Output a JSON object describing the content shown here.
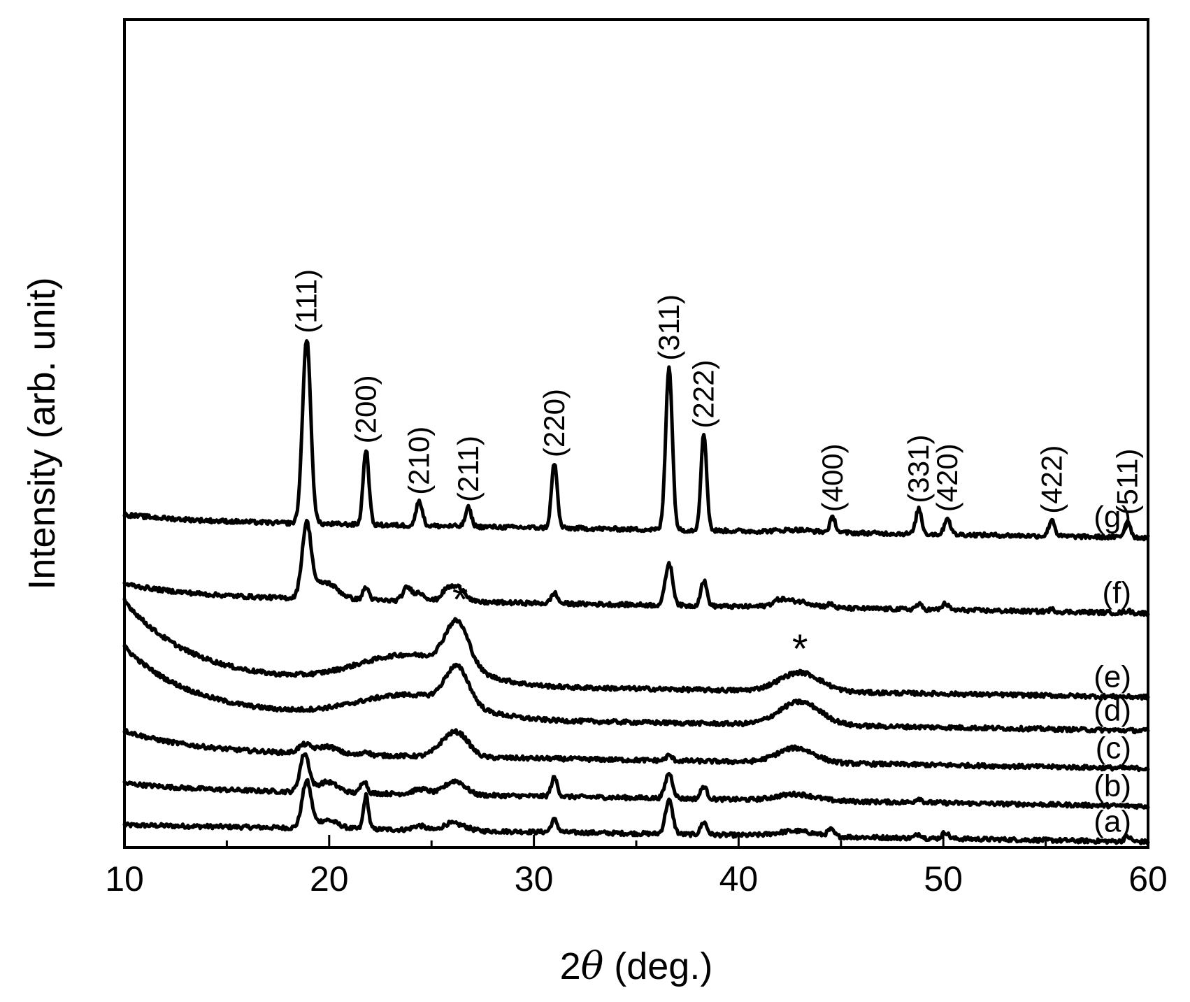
{
  "chart_data": {
    "type": "line",
    "title": "",
    "xlabel": "2θ (deg.)",
    "xlabel_parts": {
      "prefix": "2",
      "symbol": "θ",
      "suffix": " (deg.)"
    },
    "ylabel": "Intensity (arb. unit)",
    "xlim": [
      10,
      60
    ],
    "xticks": [
      10,
      20,
      30,
      40,
      50,
      60
    ],
    "yticks_shown": false,
    "grid": false,
    "legend": "none",
    "series": [
      {
        "name": "(a)",
        "offset": 0.25,
        "peaks": [
          [
            18.9,
            1.1,
            0.22
          ],
          [
            19.9,
            0.2,
            0.5
          ],
          [
            21.8,
            0.8,
            0.12
          ],
          [
            24.4,
            0.1,
            0.3
          ],
          [
            25.8,
            0.12,
            0.3
          ],
          [
            26.4,
            0.12,
            0.4
          ],
          [
            31.0,
            0.3,
            0.15
          ],
          [
            36.6,
            0.8,
            0.18
          ],
          [
            38.3,
            0.3,
            0.15
          ],
          [
            42.8,
            0.12,
            0.9
          ],
          [
            44.5,
            0.15,
            0.15
          ],
          [
            48.8,
            0.1,
            0.15
          ],
          [
            50.1,
            0.15,
            0.15
          ],
          [
            59.0,
            0.12,
            0.15
          ]
        ]
      },
      {
        "name": "(b)",
        "offset": 1.1,
        "peaks": [
          [
            18.8,
            0.9,
            0.22
          ],
          [
            19.9,
            0.25,
            0.5
          ],
          [
            21.7,
            0.3,
            0.15
          ],
          [
            24.5,
            0.12,
            0.4
          ],
          [
            25.9,
            0.2,
            0.4
          ],
          [
            26.4,
            0.2,
            0.4
          ],
          [
            31.0,
            0.45,
            0.15
          ],
          [
            36.6,
            0.6,
            0.18
          ],
          [
            38.3,
            0.3,
            0.15
          ],
          [
            42.8,
            0.15,
            0.9
          ],
          [
            48.8,
            0.1,
            0.15
          ]
        ]
      },
      {
        "name": "(c)",
        "offset": 2.0,
        "peaks": [
          [
            18.8,
            0.2,
            0.3
          ],
          [
            19.9,
            0.18,
            0.5
          ],
          [
            21.8,
            0.1,
            0.15
          ],
          [
            25.7,
            0.3,
            0.5
          ],
          [
            26.4,
            0.45,
            0.5
          ],
          [
            36.6,
            0.12,
            0.15
          ],
          [
            42.8,
            0.35,
            0.9
          ]
        ]
      },
      {
        "name": "(d)",
        "offset": 2.9,
        "peaks": [
          [
            24.0,
            0.55,
            2.6
          ],
          [
            26.0,
            0.5,
            0.5
          ],
          [
            26.5,
            0.5,
            0.5
          ],
          [
            43.0,
            0.55,
            1.0
          ]
        ]
      },
      {
        "name": "(e)",
        "offset": 3.7,
        "peaks": [
          [
            24.0,
            0.7,
            2.6
          ],
          [
            26.0,
            0.6,
            0.5
          ],
          [
            26.5,
            0.6,
            0.5
          ],
          [
            43.0,
            0.45,
            1.0
          ]
        ]
      },
      {
        "name": "(f)",
        "offset": 5.7,
        "peaks": [
          [
            18.9,
            1.7,
            0.22
          ],
          [
            19.8,
            0.4,
            0.6
          ],
          [
            21.8,
            0.3,
            0.15
          ],
          [
            23.8,
            0.3,
            0.2
          ],
          [
            24.4,
            0.2,
            0.3
          ],
          [
            25.8,
            0.3,
            0.3
          ],
          [
            26.4,
            0.3,
            0.3
          ],
          [
            31.0,
            0.25,
            0.15
          ],
          [
            36.6,
            1.0,
            0.18
          ],
          [
            38.3,
            0.6,
            0.15
          ],
          [
            42.0,
            0.1,
            0.3
          ],
          [
            42.8,
            0.15,
            0.8
          ],
          [
            44.5,
            0.08,
            0.15
          ],
          [
            48.8,
            0.12,
            0.15
          ],
          [
            50.1,
            0.15,
            0.15
          ],
          [
            55.3,
            0.05,
            0.15
          ],
          [
            59.0,
            0.05,
            0.15
          ]
        ]
      },
      {
        "name": "(g)",
        "offset": 7.5,
        "peaks": [
          [
            18.9,
            4.4,
            0.2
          ],
          [
            21.8,
            1.8,
            0.14
          ],
          [
            24.4,
            0.6,
            0.15
          ],
          [
            26.8,
            0.45,
            0.14
          ],
          [
            31.0,
            1.55,
            0.14
          ],
          [
            36.6,
            3.9,
            0.16
          ],
          [
            38.3,
            2.3,
            0.14
          ],
          [
            42.8,
            0.05,
            0.8
          ],
          [
            44.6,
            0.35,
            0.14
          ],
          [
            48.8,
            0.6,
            0.14
          ],
          [
            50.2,
            0.4,
            0.14
          ],
          [
            55.3,
            0.4,
            0.14
          ],
          [
            59.0,
            0.4,
            0.14
          ]
        ]
      }
    ],
    "peak_labels": [
      {
        "text": "(111)",
        "x": 18.9
      },
      {
        "text": "(200)",
        "x": 21.8
      },
      {
        "text": "(210)",
        "x": 24.4
      },
      {
        "text": "(211)",
        "x": 26.8
      },
      {
        "text": "(220)",
        "x": 31.0
      },
      {
        "text": "(311)",
        "x": 36.6
      },
      {
        "text": "(222)",
        "x": 38.3
      },
      {
        "text": "(400)",
        "x": 44.6
      },
      {
        "text": "(331)",
        "x": 48.8
      },
      {
        "text": "(420)",
        "x": 50.2
      },
      {
        "text": "(422)",
        "x": 55.3
      },
      {
        "text": "(511)",
        "x": 59.0
      }
    ],
    "annotations": [
      {
        "text": "*",
        "x": 26.4,
        "series": "(e)"
      },
      {
        "text": "*",
        "x": 43.0,
        "series": "(e)"
      }
    ]
  }
}
